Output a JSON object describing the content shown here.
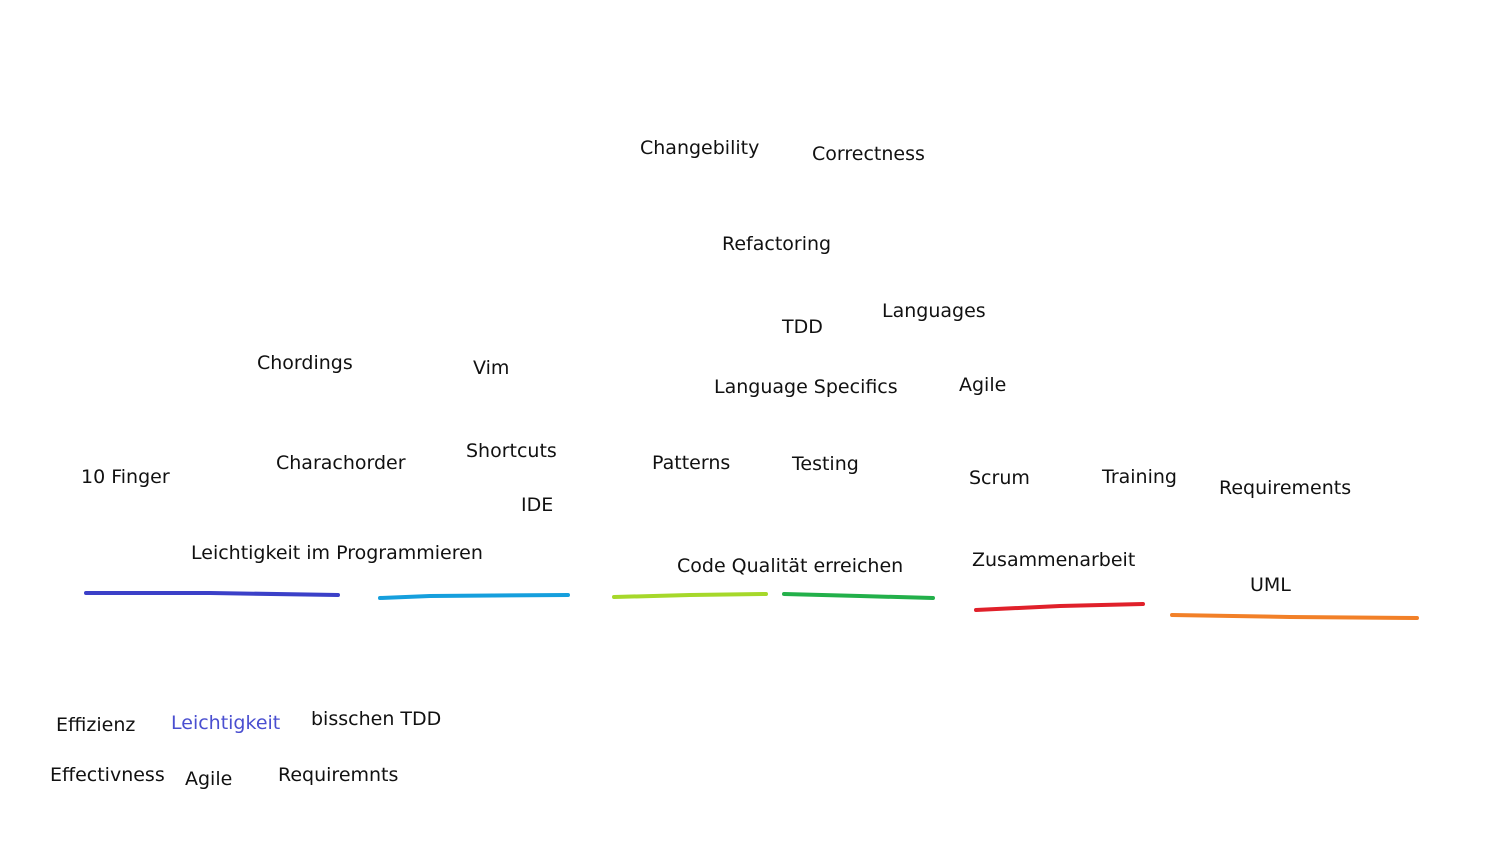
{
  "words": {
    "changebility": "Changebility",
    "correctness": "Correctness",
    "refactoring": "Refactoring",
    "tdd": "TDD",
    "languages": "Languages",
    "chordings": "Chordings",
    "vim": "Vim",
    "language_specifics": "Language Specifics",
    "agile_top": "Agile",
    "shortcuts": "Shortcuts",
    "ten_finger": "10 Finger",
    "charachorder": "Charachorder",
    "patterns": "Patterns",
    "testing": "Testing",
    "scrum": "Scrum",
    "training": "Training",
    "requirements": "Requirements",
    "ide": "IDE",
    "leichtigkeit_im_programmieren": "Leichtigkeit im Programmieren",
    "code_qualitaet": "Code Qualität erreichen",
    "zusammenarbeit": "Zusammenarbeit",
    "uml": "UML",
    "effizienz": "Effizienz",
    "leichtigkeit": "Leichtigkeit",
    "bisschen_tdd": "bisschen TDD",
    "effectivness": "Effectivness",
    "agile_bottom": "Agile",
    "requiremnts": "Requiremnts"
  },
  "colors": {
    "text": "#111111",
    "highlight_text": "#4a4fd0",
    "stroke_dark_blue": "#3b40c8",
    "stroke_light_blue": "#159fdd",
    "stroke_lime": "#a6d82a",
    "stroke_green": "#23b04a",
    "stroke_red": "#e0202a",
    "stroke_orange": "#f28028"
  }
}
